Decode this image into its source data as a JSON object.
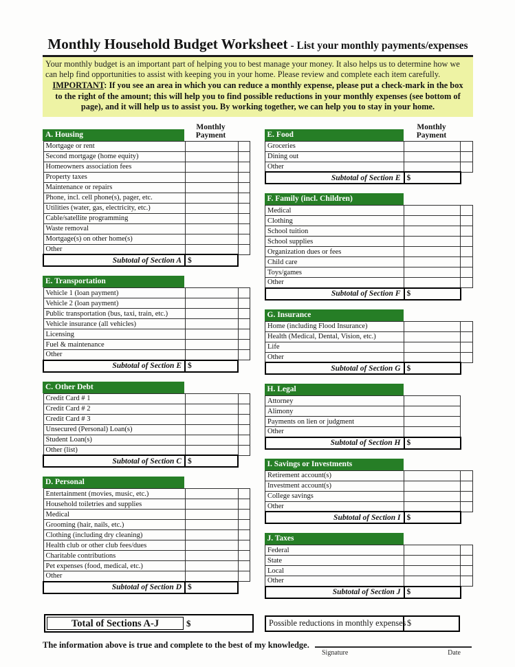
{
  "header": {
    "title": "Monthly Household Budget Worksheet",
    "subtitle": "- List your monthly payments/expenses",
    "intro": "Your monthly budget is an important part of helping you to best manage your money. It also helps us to determine how we can help find opportunities to assist with keeping you in your home. Please review and complete each item carefully.",
    "important_label": "IMPORTANT",
    "important_text": ": If you see an area in which you can reduce a monthly expense, please put a check-mark in the box to the right of the amount; this will help you to find possible reductions in your monthly expenses (see bottom of page), and it will help us to assist you. By working together, we can help you to stay in your home."
  },
  "column_header": {
    "line1": "Monthly",
    "line2": "Payment"
  },
  "sections": {
    "left": [
      {
        "id": "A",
        "title": "A. Housing",
        "rows": [
          "Mortgage or rent",
          "Second mortgage (home equity)",
          "Homeowners association fees",
          "Property taxes",
          "Maintenance or repairs",
          "Phone, incl. cell phone(s), pager, etc.",
          "Utilities (water, gas, electricity, etc.)",
          "Cable/satellite programming",
          "Waste removal",
          "Mortgage(s) on other home(s)",
          "Other"
        ],
        "subtotal_label": "Subtotal of Section A",
        "has_checkbox": true
      },
      {
        "id": "E",
        "title": "E. Transportation",
        "rows": [
          "Vehicle 1 (loan payment)",
          "Vehicle 2 (loan payment)",
          "Public transportation (bus, taxi, train, etc.)",
          "Vehicle insurance (all vehicles)",
          "Licensing",
          "Fuel & maintenance",
          "Other"
        ],
        "subtotal_label": "Subtotal of Section E",
        "has_checkbox": true
      },
      {
        "id": "C",
        "title": "C. Other Debt",
        "rows": [
          "Credit Card # 1",
          "Credit Card # 2",
          "Credit Card # 3",
          "Unsecured (Personal) Loan(s)",
          "Student Loan(s)",
          "Other (list)"
        ],
        "subtotal_label": "Subtotal of Section C",
        "has_checkbox": true
      },
      {
        "id": "D",
        "title": "D. Personal",
        "rows": [
          "Entertainment (movies, music, etc.)",
          "Household toiletries and supplies",
          "Medical",
          "Grooming (hair, nails, etc.)",
          "Clothing (including dry cleaning)",
          "Health club or other club fees/dues",
          "Charitable contributions",
          "Pet expenses (food, medical, etc.)",
          "Other"
        ],
        "subtotal_label": "Subtotal of Section D",
        "has_checkbox": true
      }
    ],
    "right": [
      {
        "id": "E2",
        "title": "E. Food",
        "rows": [
          "Groceries",
          "Dining out",
          "Other"
        ],
        "subtotal_label": "Subtotal of Section E",
        "has_checkbox": true
      },
      {
        "id": "F",
        "title": "F. Family (incl. Children)",
        "rows": [
          "Medical",
          "Clothing",
          "School tuition",
          "School supplies",
          "Organization dues or fees",
          "Child care",
          "Toys/games",
          "Other"
        ],
        "subtotal_label": "Subtotal of Section F",
        "has_checkbox": true
      },
      {
        "id": "G",
        "title": "G. Insurance",
        "rows": [
          "Home (including Flood Insurance)",
          "Health (Medical, Dental, Vision, etc.)",
          "Life",
          "Other"
        ],
        "subtotal_label": "Subtotal of Section G",
        "has_checkbox": true
      },
      {
        "id": "H",
        "title": "H. Legal",
        "rows": [
          "Attorney",
          "Alimony",
          "Payments on lien or judgment",
          "Other"
        ],
        "subtotal_label": "Subtotal of Section H",
        "has_checkbox": false
      },
      {
        "id": "I",
        "title": "I. Savings or Investments",
        "rows": [
          "Retirement account(s)",
          "Investment account(s)",
          "College savings",
          "Other"
        ],
        "subtotal_label": "Subtotal of Section I",
        "has_checkbox": true
      },
      {
        "id": "J",
        "title": "J. Taxes",
        "rows": [
          "Federal",
          "State",
          "Local",
          "Other"
        ],
        "subtotal_label": "Subtotal of Section J",
        "has_checkbox": true
      }
    ]
  },
  "totals": {
    "total_label": "Total of Sections A-J",
    "reductions_label": "Possible reductions in monthly expenses"
  },
  "footer": {
    "statement": "The information above is true and complete to the best of my knowledge.",
    "signature_label": "Signature",
    "date_label": "Date"
  },
  "misc": {
    "currency": "$"
  },
  "colors": {
    "header_green": "#267e26",
    "highlight_yellow": "#eef3a4"
  }
}
